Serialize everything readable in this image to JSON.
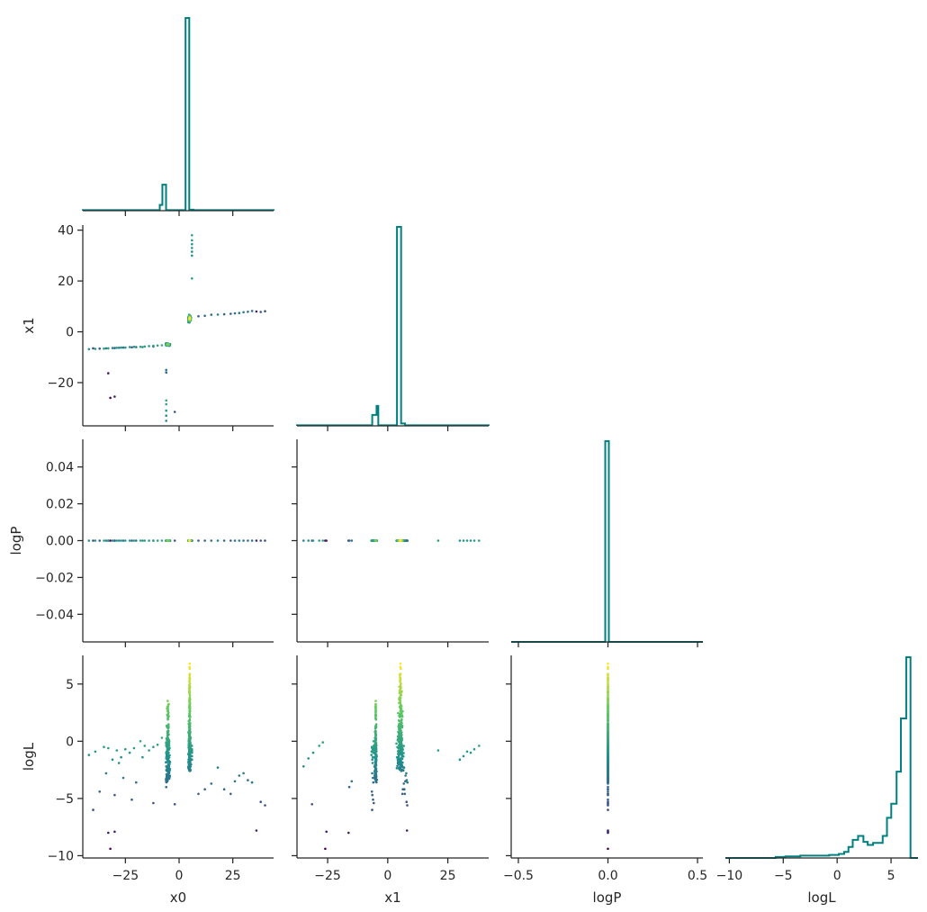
{
  "chart_data": {
    "type": "scatter",
    "layout": "corner",
    "variables": [
      "x0",
      "x1",
      "logP",
      "logL"
    ],
    "colormap": "viridis",
    "color_by": "logL",
    "hist_color": "#008080",
    "palette": [
      "#440154",
      "#3b528b",
      "#21918c",
      "#5ec962",
      "#fde725"
    ],
    "ranges": {
      "x0": [
        -44,
        44
      ],
      "x1": [
        -37,
        42
      ],
      "logP": [
        -0.055,
        0.055
      ],
      "logL": [
        -10.2,
        7.5
      ]
    },
    "axis_ranges": {
      "x1_vs_logL_x": [
        -37,
        42
      ],
      "logP_hist_x": [
        -0.53,
        0.53
      ],
      "logL_hist_x": [
        -10.5,
        7.5
      ]
    },
    "ticks": {
      "x0": [
        {
          "v": -25,
          "label": "−25"
        },
        {
          "v": 0,
          "label": "0"
        },
        {
          "v": 25,
          "label": "25"
        }
      ],
      "x1": [
        {
          "v": -20,
          "label": "−20"
        },
        {
          "v": 0,
          "label": "0"
        },
        {
          "v": 20,
          "label": "20"
        },
        {
          "v": 40,
          "label": "40"
        }
      ],
      "x1_bottom": [
        {
          "v": -25,
          "label": "−25"
        },
        {
          "v": 0,
          "label": "0"
        },
        {
          "v": 25,
          "label": "25"
        }
      ],
      "logP": [
        {
          "v": -0.04,
          "label": "−0.04"
        },
        {
          "v": -0.02,
          "label": "−0.02"
        },
        {
          "v": 0.0,
          "label": "0.00"
        },
        {
          "v": 0.02,
          "label": "0.02"
        },
        {
          "v": 0.04,
          "label": "0.04"
        }
      ],
      "logP_bottom": [
        {
          "v": -0.5,
          "label": "−0.5"
        },
        {
          "v": 0.0,
          "label": "0.0"
        },
        {
          "v": 0.5,
          "label": "0.5"
        }
      ],
      "logL": [
        {
          "v": -10,
          "label": "−10"
        },
        {
          "v": -5,
          "label": "−5"
        },
        {
          "v": 0,
          "label": "0"
        },
        {
          "v": 5,
          "label": "5"
        }
      ],
      "logL_bottom": [
        {
          "v": -10,
          "label": "−10"
        },
        {
          "v": -5,
          "label": "−5"
        },
        {
          "v": 0,
          "label": "0"
        },
        {
          "v": 5,
          "label": "5"
        }
      ]
    },
    "histograms": {
      "x0": {
        "range": [
          -44,
          44
        ],
        "bins": [
          {
            "x0": -44,
            "x1": -8.5,
            "h": 0.003
          },
          {
            "x0": -8.5,
            "x1": -7.3,
            "h": 0.03
          },
          {
            "x0": -7.3,
            "x1": -5.6,
            "h": 0.135
          },
          {
            "x0": -5.6,
            "x1": -4.0,
            "h": 0.003
          },
          {
            "x0": -4.0,
            "x1": 3.4,
            "h": 0.003
          },
          {
            "x0": 3.4,
            "x1": 5.1,
            "h": 1.0
          },
          {
            "x0": 5.1,
            "x1": 7.0,
            "h": 0.005
          },
          {
            "x0": 7.0,
            "x1": 44,
            "h": 0.003
          }
        ]
      },
      "x1": {
        "range": [
          -37,
          42
        ],
        "bins": [
          {
            "x0": -37,
            "x1": -6.0,
            "h": 0.003
          },
          {
            "x0": -6.0,
            "x1": -4.2,
            "h": 0.055
          },
          {
            "x0": -4.2,
            "x1": -3.5,
            "h": 0.1
          },
          {
            "x0": -3.5,
            "x1": 4.2,
            "h": 0.003
          },
          {
            "x0": 4.2,
            "x1": 5.9,
            "h": 1.0
          },
          {
            "x0": 5.9,
            "x1": 7.5,
            "h": 0.012
          },
          {
            "x0": 7.5,
            "x1": 42,
            "h": 0.003
          }
        ]
      },
      "logP": {
        "range": [
          -0.53,
          0.53
        ],
        "bins": [
          {
            "x0": -0.53,
            "x1": -0.01,
            "h": 0.0
          },
          {
            "x0": -0.01,
            "x1": 0.01,
            "h": 1.0
          },
          {
            "x0": 0.01,
            "x1": 0.53,
            "h": 0.0
          }
        ]
      },
      "logL": {
        "range": [
          -10.5,
          7.5
        ],
        "bins": [
          {
            "x0": -10.5,
            "x1": -5.8,
            "h": 0.0
          },
          {
            "x0": -5.8,
            "x1": -4.9,
            "h": 0.005
          },
          {
            "x0": -4.9,
            "x1": -3.5,
            "h": 0.008
          },
          {
            "x0": -3.5,
            "x1": -2.1,
            "h": 0.012
          },
          {
            "x0": -2.1,
            "x1": -0.8,
            "h": 0.012
          },
          {
            "x0": -0.8,
            "x1": 0.1,
            "h": 0.015
          },
          {
            "x0": 0.1,
            "x1": 0.6,
            "h": 0.02
          },
          {
            "x0": 0.6,
            "x1": 1.0,
            "h": 0.03
          },
          {
            "x0": 1.0,
            "x1": 1.4,
            "h": 0.055
          },
          {
            "x0": 1.4,
            "x1": 1.9,
            "h": 0.09
          },
          {
            "x0": 1.9,
            "x1": 2.4,
            "h": 0.11
          },
          {
            "x0": 2.4,
            "x1": 2.8,
            "h": 0.08
          },
          {
            "x0": 2.8,
            "x1": 3.3,
            "h": 0.065
          },
          {
            "x0": 3.3,
            "x1": 3.7,
            "h": 0.075
          },
          {
            "x0": 3.7,
            "x1": 4.2,
            "h": 0.075
          },
          {
            "x0": 4.2,
            "x1": 4.6,
            "h": 0.11
          },
          {
            "x0": 4.6,
            "x1": 5.0,
            "h": 0.2
          },
          {
            "x0": 5.0,
            "x1": 5.5,
            "h": 0.27
          },
          {
            "x0": 5.5,
            "x1": 5.9,
            "h": 0.43
          },
          {
            "x0": 5.9,
            "x1": 6.4,
            "h": 0.695
          },
          {
            "x0": 6.4,
            "x1": 6.8,
            "h": 1.0
          },
          {
            "x0": 6.8,
            "x1": 7.5,
            "h": 0.0
          }
        ]
      }
    },
    "scatter_structure": {
      "points": [
        [
          -42,
          -6.8,
          -1.2
        ],
        [
          -39,
          -6.7,
          -0.9
        ],
        [
          -35,
          -6.6,
          -0.5
        ],
        [
          -33,
          -6.5,
          -0.6
        ],
        [
          -31,
          -6.4,
          -1.6
        ],
        [
          -29,
          -6.3,
          -0.8
        ],
        [
          -27,
          -6.2,
          -1.4
        ],
        [
          -25,
          -6.2,
          -0.7
        ],
        [
          -23,
          -6.0,
          -1.0
        ],
        [
          -21,
          -5.9,
          -0.6
        ],
        [
          -18,
          -5.9,
          0.0
        ],
        [
          -16,
          -5.8,
          -0.4
        ],
        [
          -14,
          -5.6,
          -0.8
        ],
        [
          -12,
          -5.5,
          -0.5
        ],
        [
          -10,
          -5.4,
          -0.3
        ],
        [
          -8,
          -5.3,
          0.3
        ],
        [
          -33,
          -16.3,
          -8.0
        ],
        [
          -32,
          -26.0,
          -9.4
        ],
        [
          -30,
          -25.5,
          -7.9
        ],
        [
          -2,
          -31.5,
          -5.5
        ],
        [
          -6,
          -35.0,
          -2.2
        ],
        [
          -6,
          -33.0,
          -1.5
        ],
        [
          -6,
          -31.0,
          -1.0
        ],
        [
          -6,
          -28.5,
          -0.4
        ],
        [
          -6,
          -27.0,
          -0.1
        ],
        [
          -6,
          -16.0,
          -4.0
        ],
        [
          -6,
          -15.0,
          -3.5
        ],
        [
          6,
          38.0,
          -0.4
        ],
        [
          6,
          36.0,
          -0.7
        ],
        [
          6,
          34.5,
          -1.0
        ],
        [
          6,
          33.0,
          -0.9
        ],
        [
          6,
          31.5,
          -1.3
        ],
        [
          6,
          30.0,
          -1.6
        ],
        [
          6,
          21.0,
          -0.8
        ],
        [
          9,
          6.1,
          -4.6
        ],
        [
          12,
          6.3,
          -4.2
        ],
        [
          15,
          6.7,
          -3.7
        ],
        [
          18,
          6.8,
          -2.3
        ],
        [
          21,
          6.9,
          -4.2
        ],
        [
          24,
          7.1,
          -4.6
        ],
        [
          26,
          7.3,
          -3.5
        ],
        [
          28,
          7.4,
          -3.0
        ],
        [
          30,
          7.7,
          -2.8
        ],
        [
          32,
          7.9,
          -3.4
        ],
        [
          34,
          8.2,
          -3.6
        ],
        [
          36,
          8.0,
          -7.8
        ],
        [
          38,
          7.8,
          -5.3
        ],
        [
          40,
          8.1,
          -5.6
        ],
        [
          -40,
          -6.5,
          -6.0
        ],
        [
          -37,
          -6.6,
          -4.4
        ],
        [
          -34,
          -6.5,
          -2.8
        ],
        [
          -30,
          -6.4,
          -4.7
        ],
        [
          -28,
          -6.3,
          -1.9
        ],
        [
          -26,
          -6.2,
          -3.2
        ],
        [
          -22,
          -6.1,
          -5.1
        ],
        [
          -20,
          -6.0,
          -3.6
        ],
        [
          -17,
          -6.0,
          -1.4
        ],
        [
          -12,
          -5.8,
          -5.4
        ]
      ],
      "ridge_x0": [
        -5.2,
        4.9
      ],
      "ridge_x1": [
        -5.0,
        5.2
      ]
    }
  }
}
